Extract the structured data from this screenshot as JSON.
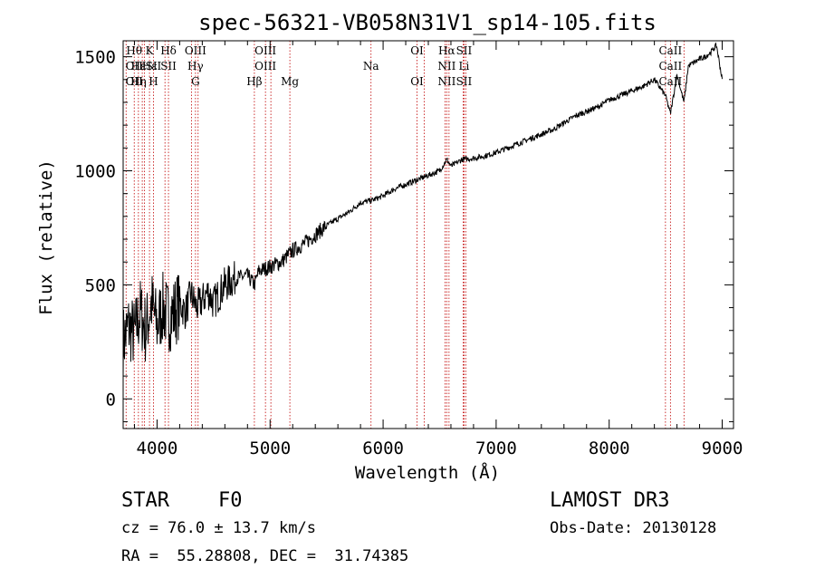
{
  "chart_data": {
    "type": "line",
    "title": "spec-56321-VB058N31V1_sp14-105.fits",
    "xlabel": "Wavelength (Å)",
    "ylabel": "Flux (relative)",
    "xlim": [
      3700,
      9100
    ],
    "ylim": [
      -130,
      1570
    ],
    "x_ticks": [
      4000,
      5000,
      6000,
      7000,
      8000,
      9000
    ],
    "x_tick_labels": [
      "4000",
      "5000",
      "6000",
      "7000",
      "8000",
      "9000"
    ],
    "y_ticks": [
      0,
      500,
      1000,
      1500
    ],
    "y_tick_labels": [
      "0",
      "500",
      "1000",
      "1500"
    ],
    "series": [
      {
        "name": "flux",
        "x": [
          3700,
          3750,
          3800,
          3850,
          3900,
          3950,
          4000,
          4050,
          4100,
          4150,
          4200,
          4250,
          4300,
          4350,
          4400,
          4450,
          4500,
          4600,
          4700,
          4800,
          4861,
          4900,
          5000,
          5100,
          5200,
          5300,
          5400,
          5500,
          5600,
          5700,
          5800,
          5900,
          6000,
          6100,
          6200,
          6300,
          6400,
          6500,
          6563,
          6600,
          6700,
          6800,
          6900,
          7000,
          7100,
          7200,
          7300,
          7400,
          7500,
          7600,
          7700,
          7800,
          7900,
          8000,
          8100,
          8200,
          8300,
          8400,
          8498,
          8542,
          8600,
          8662,
          8700,
          8800,
          8850,
          8900,
          8950,
          9000
        ],
        "y": [
          250,
          320,
          280,
          380,
          300,
          420,
          320,
          400,
          360,
          380,
          420,
          380,
          460,
          400,
          430,
          470,
          420,
          500,
          530,
          540,
          500,
          560,
          580,
          600,
          650,
          680,
          720,
          760,
          790,
          820,
          860,
          870,
          890,
          920,
          940,
          960,
          980,
          1000,
          1050,
          1020,
          1050,
          1055,
          1065,
          1080,
          1100,
          1120,
          1140,
          1160,
          1180,
          1210,
          1240,
          1260,
          1280,
          1310,
          1330,
          1350,
          1370,
          1400,
          1330,
          1250,
          1420,
          1300,
          1460,
          1490,
          1500,
          1520,
          1550,
          1400
        ]
      }
    ],
    "line_annotations": [
      {
        "name": "H-theta",
        "top": "Hθ",
        "mid": "OII",
        "bot": "OII",
        "wl": 3798
      },
      {
        "name": "H-eta",
        "top": "",
        "mid": "Hε",
        "bot": "Hη",
        "wl": 3835
      },
      {
        "name": "Ca-K",
        "top": "K",
        "mid": "Hε",
        "bot": "",
        "wl": 3933
      },
      {
        "name": "Ca-H",
        "top": "",
        "mid": "SII",
        "bot": "H",
        "wl": 3968
      },
      {
        "name": "H-delta",
        "top": "Hδ",
        "mid": "SII",
        "bot": "",
        "wl": 4101
      },
      {
        "name": "O-III-a",
        "top": "OIII",
        "mid": "Hγ",
        "bot": "G",
        "wl": 4340
      },
      {
        "name": "H-beta",
        "top": "",
        "mid": "",
        "bot": "Hβ",
        "wl": 4861
      },
      {
        "name": "O-III-b",
        "top": "OIII",
        "mid": "OIII",
        "bot": "",
        "wl": 4959
      },
      {
        "name": "Mg",
        "top": "",
        "mid": "",
        "bot": "Mg",
        "wl": 5175
      },
      {
        "name": "Na",
        "top": "",
        "mid": "Na",
        "bot": "",
        "wl": 5893
      },
      {
        "name": "O-I-a",
        "top": "OI",
        "mid": "",
        "bot": "OI",
        "wl": 6300
      },
      {
        "name": "H-alpha",
        "top": "Hα",
        "mid": "NII",
        "bot": "NII",
        "wl": 6563
      },
      {
        "name": "S-II",
        "top": "SII",
        "mid": "Li",
        "bot": "SII",
        "wl": 6716
      },
      {
        "name": "Ca-II",
        "top": "CaII",
        "mid": "CaII",
        "bot": "CaII",
        "wl": 8542
      }
    ],
    "line_markers_wl": [
      3726,
      3798,
      3835,
      3869,
      3889,
      3933,
      3968,
      4070,
      4101,
      4304,
      4340,
      4363,
      4861,
      4959,
      5007,
      5175,
      5893,
      6300,
      6363,
      6548,
      6563,
      6583,
      6708,
      6716,
      6731,
      8498,
      8542,
      8662
    ]
  },
  "info": {
    "class": "STAR",
    "subclass": "F0",
    "survey": "LAMOST DR3",
    "cz": "cz = 76.0 ± 13.7 km/s",
    "obs_date": "Obs-Date: 20130128",
    "coords": "RA =  55.28808, DEC =  31.74385"
  },
  "colors": {
    "axis": "#000000",
    "line_marker": "#c00000",
    "spectrum": "#000000"
  }
}
